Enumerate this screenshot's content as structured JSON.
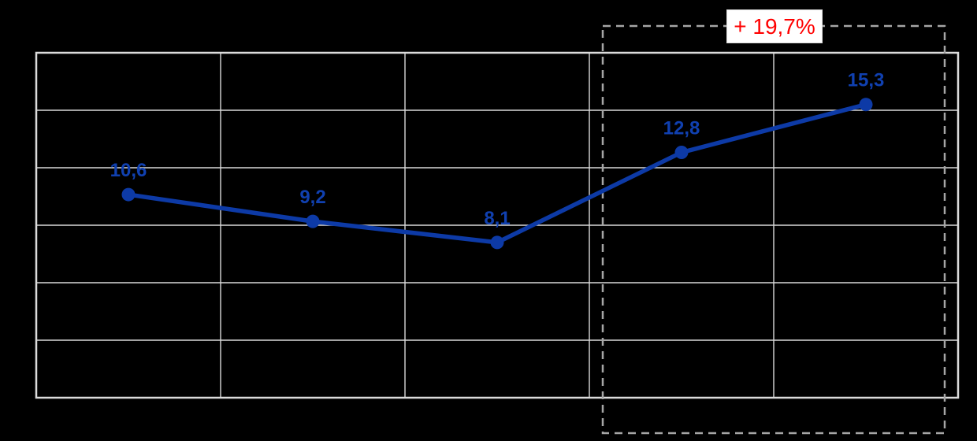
{
  "chart_data": {
    "type": "line",
    "values": [
      10.6,
      9.2,
      8.1,
      12.8,
      15.3
    ],
    "point_labels": [
      "10,6",
      "9,2",
      "8,1",
      "12,8",
      "15,3"
    ],
    "decimal_format": "comma",
    "ylim": [
      0,
      18
    ],
    "grid": {
      "rows": 6,
      "cols": 5,
      "visible": true,
      "frame": true
    },
    "legend": "none",
    "axis_tick_labels_visible": false,
    "highlight": {
      "label": "+ 19,7%",
      "covers_points": [
        3,
        4
      ],
      "style": "dashed-rectangle"
    },
    "colors": {
      "background": "#000000",
      "line": "#0d3aa6",
      "marker": "#0d3aa6",
      "point_label": "#1040b0",
      "grid": "#d9d9d9",
      "frame": "#dcdcdc",
      "dashed_box": "#a6a6a6",
      "annotation_text": "#ff0000",
      "annotation_bg": "#ffffff",
      "annotation_border": "#d9d9d9"
    }
  }
}
